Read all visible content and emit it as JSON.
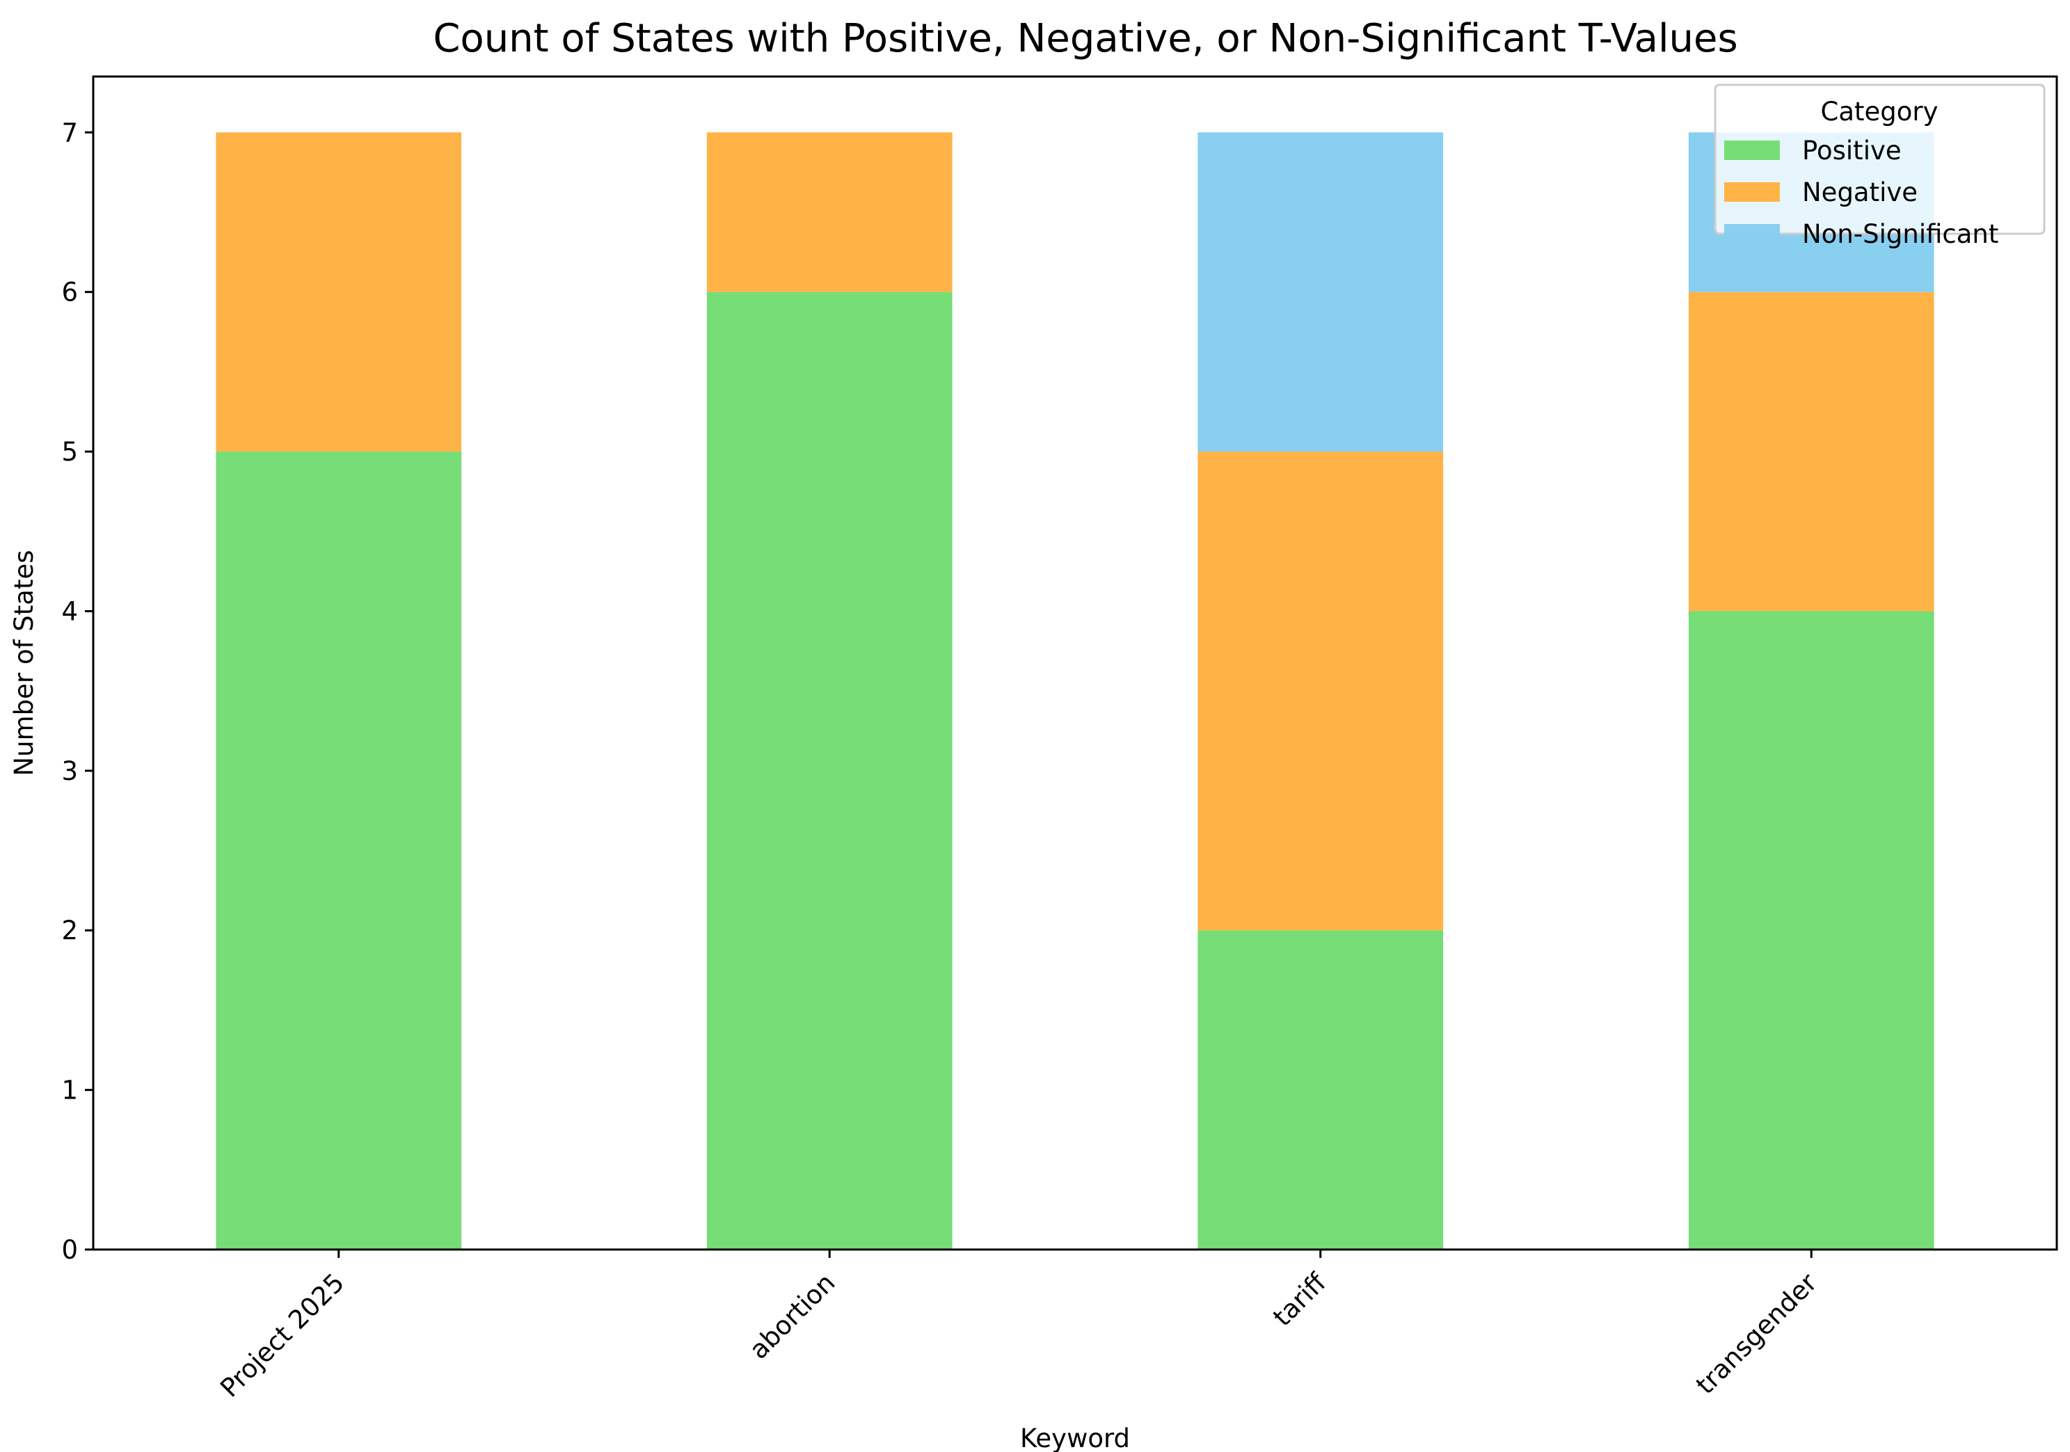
{
  "chart_data": {
    "type": "bar",
    "stacked": true,
    "title": "Count of States with Positive, Negative, or Non-Significant T-Values",
    "xlabel": "Keyword",
    "ylabel": "Number of States",
    "categories": [
      "Project 2025",
      "abortion",
      "tariff",
      "transgender"
    ],
    "series": [
      {
        "name": "Positive",
        "color": "#77dd77",
        "values": [
          5,
          6,
          2,
          4
        ]
      },
      {
        "name": "Negative",
        "color": "#ffb347",
        "values": [
          2,
          1,
          3,
          2
        ]
      },
      {
        "name": "Non-Significant",
        "color": "#89cff0",
        "values": [
          0,
          0,
          2,
          1
        ]
      }
    ],
    "ylim": [
      0,
      7.35
    ],
    "yticks": [
      "0",
      "1",
      "2",
      "3",
      "4",
      "5",
      "6",
      "7"
    ],
    "grid": false,
    "legend": {
      "title": "Category",
      "position": "top-right"
    }
  }
}
